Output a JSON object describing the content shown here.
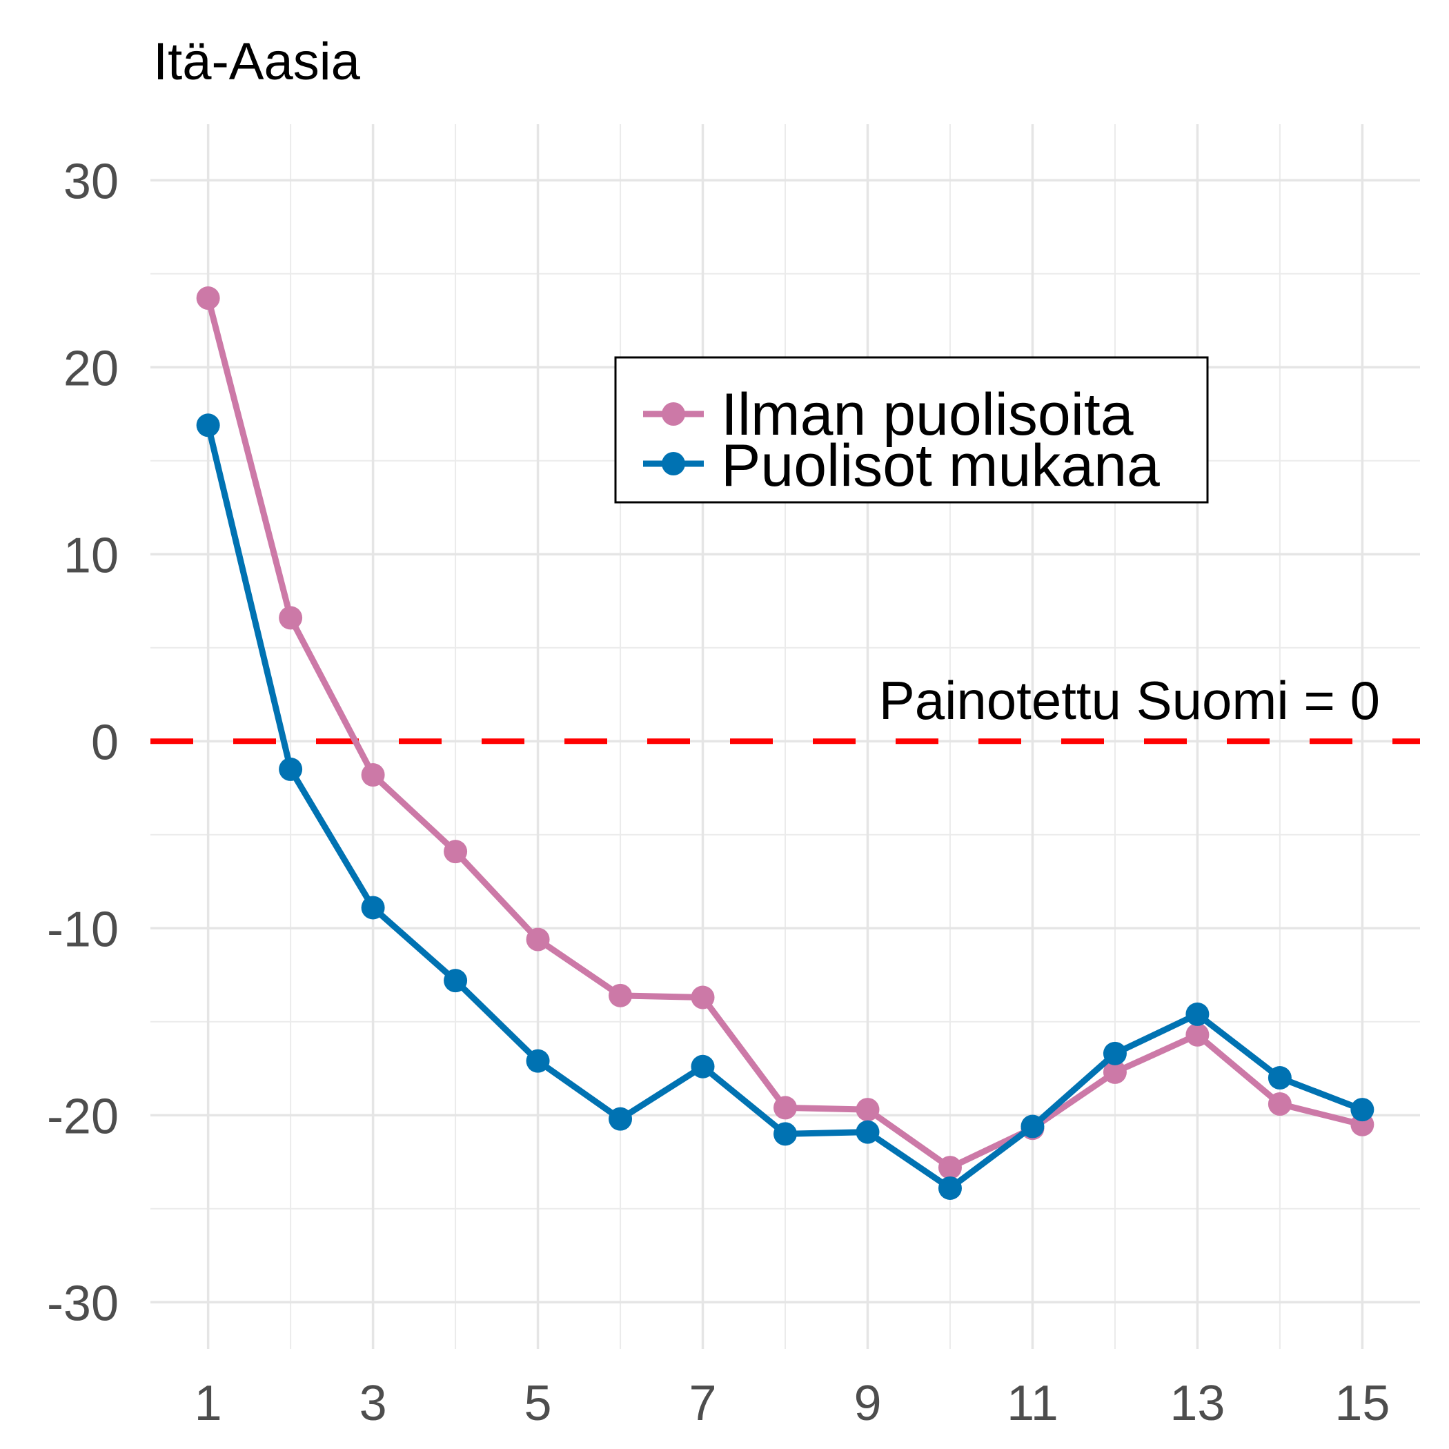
{
  "chart_data": {
    "type": "line",
    "title": "Itä-Aasia",
    "xlabel": "",
    "ylabel": "",
    "x": [
      1,
      2,
      3,
      4,
      5,
      6,
      7,
      8,
      9,
      10,
      11,
      12,
      13,
      14,
      15
    ],
    "x_ticks": [
      1,
      3,
      5,
      7,
      9,
      11,
      13,
      15
    ],
    "x_tick_labels": [
      "1",
      "3",
      "5",
      "7",
      "9",
      "11",
      "13",
      "15"
    ],
    "xlim": [
      0.3,
      15.7
    ],
    "y_ticks": [
      30,
      20,
      10,
      0,
      -10,
      -20,
      -30
    ],
    "y_tick_labels": [
      "30",
      "20",
      "10",
      "0",
      "-10",
      "-20",
      "-30"
    ],
    "ylim": [
      -32.5,
      33
    ],
    "grid": true,
    "series": [
      {
        "name": "Ilman puolisoita",
        "color": "#cc79a7",
        "values": [
          23.7,
          6.6,
          -1.8,
          -5.9,
          -10.6,
          -13.6,
          -13.7,
          -19.6,
          -19.7,
          -22.8,
          -20.7,
          -17.7,
          -15.7,
          -19.4,
          -20.5
        ]
      },
      {
        "name": "Puolisot mukana",
        "color": "#0072b2",
        "values": [
          16.9,
          -1.5,
          -8.9,
          -12.8,
          -17.1,
          -20.2,
          -17.4,
          -21.0,
          -20.9,
          -23.9,
          -20.6,
          -16.7,
          -14.6,
          -18.0,
          -19.7
        ]
      }
    ],
    "reference_line": {
      "y": 0,
      "label": "Painotettu Suomi = 0",
      "color": "#ff0000",
      "style": "dashed"
    },
    "legend": {
      "position": "top-right",
      "entries": [
        "Ilman puolisoita",
        "Puolisot mukana"
      ]
    }
  }
}
